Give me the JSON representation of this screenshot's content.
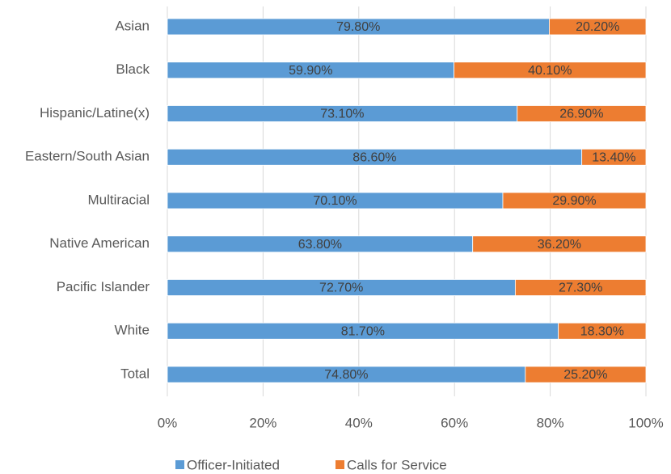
{
  "chart_data": {
    "type": "stacked_bar_horizontal",
    "categories": [
      "Asian",
      "Black",
      "Hispanic/Latine(x)",
      "Eastern/South Asian",
      "Multiracial",
      "Native American",
      "Pacific Islander",
      "White",
      "Total"
    ],
    "series": [
      {
        "name": "Officer-Initiated",
        "color": "#5b9bd5",
        "values": [
          79.8,
          59.9,
          73.1,
          86.6,
          70.1,
          63.8,
          72.7,
          81.7,
          74.8
        ],
        "value_labels": [
          "79.80%",
          "59.90%",
          "73.10%",
          "86.60%",
          "70.10%",
          "63.80%",
          "72.70%",
          "81.70%",
          "74.80%"
        ]
      },
      {
        "name": "Calls for Service",
        "color": "#ed7d31",
        "values": [
          20.2,
          40.1,
          26.9,
          13.4,
          29.9,
          36.2,
          27.3,
          18.3,
          25.2
        ],
        "value_labels": [
          "20.20%",
          "40.10%",
          "26.90%",
          "13.40%",
          "29.90%",
          "36.20%",
          "27.30%",
          "18.30%",
          "25.20%"
        ]
      }
    ],
    "xlim": [
      0,
      100
    ],
    "xticks": [
      {
        "value": 0,
        "label": "0%"
      },
      {
        "value": 20,
        "label": "20%"
      },
      {
        "value": 40,
        "label": "40%"
      },
      {
        "value": 60,
        "label": "60%"
      },
      {
        "value": 80,
        "label": "80%"
      },
      {
        "value": 100,
        "label": "100%"
      }
    ],
    "grid": true,
    "legend": "bottom"
  }
}
